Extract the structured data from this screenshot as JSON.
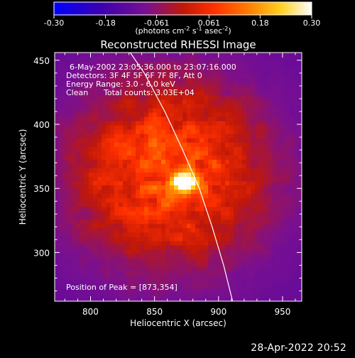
{
  "colorbar": {
    "ticks": [
      "-0.30",
      "-0.18",
      "-0.061",
      "0.061",
      "0.18",
      "0.30"
    ],
    "units_prefix": "(photons cm",
    "units_exp1": "-2",
    "units_mid": " s",
    "units_exp2": "-1",
    "units_mid2": " asec",
    "units_exp3": "-2",
    "units_suffix": ")"
  },
  "chart_data": {
    "type": "heatmap",
    "title": "Reconstructed RHESSI Image",
    "xlabel": "Heliocentric X (arcsec)",
    "ylabel": "Heliocentric Y (arcsec)",
    "xlim": [
      772,
      965
    ],
    "ylim": [
      262,
      456
    ],
    "x_ticks": [
      800,
      850,
      900,
      950
    ],
    "y_ticks": [
      300,
      350,
      400,
      450
    ],
    "colorbar_range": [
      -0.3,
      0.3
    ],
    "peak": [
      873,
      354
    ],
    "limb": [
      [
        831,
        456
      ],
      [
        842,
        440
      ],
      [
        858,
        410
      ],
      [
        872,
        380
      ],
      [
        885,
        350
      ],
      [
        895,
        320
      ],
      [
        904,
        290
      ],
      [
        911,
        262
      ]
    ],
    "annotations": {
      "line1": "6-May-2002 23:05:36.000 to 23:07:16.000",
      "line2": "Detectors: 3F 4F 5F 6F 7F 8F, Att 0",
      "line3": "Energy Range: 3.0 - 6.0 keV",
      "line4_left": "Clean",
      "line4_right": "Total counts: 3.03E+04",
      "peak_label": "Position of Peak = [873,354]"
    }
  },
  "footer": {
    "date": "28-Apr-2022 20:52"
  }
}
